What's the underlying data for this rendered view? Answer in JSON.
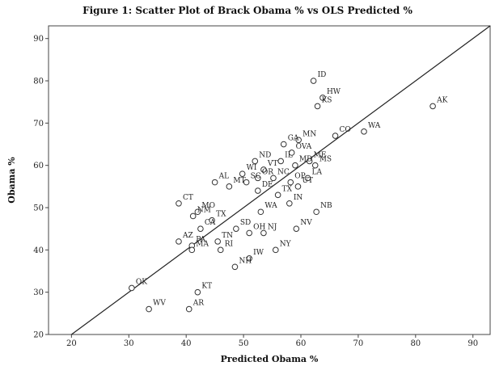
{
  "chart_data": {
    "type": "scatter",
    "title": "Figure 1: Scatter Plot of Brack Obama % vs OLS Predicted %",
    "xlabel": "Predicted Obama %",
    "ylabel": "Obama %",
    "xlim": [
      16,
      93
    ],
    "ylim": [
      20,
      93
    ],
    "xticks": [
      20,
      30,
      40,
      50,
      60,
      70,
      80,
      90
    ],
    "yticks": [
      20,
      30,
      40,
      50,
      60,
      70,
      80,
      90
    ],
    "fit_line": {
      "x": [
        20,
        93
      ],
      "y": [
        20,
        93
      ]
    },
    "points": [
      {
        "label": "ID",
        "x": 62.2,
        "y": 80
      },
      {
        "label": "HW",
        "x": 63.8,
        "y": 76
      },
      {
        "label": "KS",
        "x": 62.9,
        "y": 74
      },
      {
        "label": "AK",
        "x": 83,
        "y": 74
      },
      {
        "label": "WA",
        "x": 71,
        "y": 68
      },
      {
        "label": "CO",
        "x": 66,
        "y": 67
      },
      {
        "label": "MN",
        "x": 59.6,
        "y": 66
      },
      {
        "label": "GA",
        "x": 57,
        "y": 65
      },
      {
        "label": "OVA",
        "x": 58.4,
        "y": 63
      },
      {
        "label": "IL",
        "x": 56.5,
        "y": 61
      },
      {
        "label": "ND",
        "x": 52,
        "y": 61
      },
      {
        "label": "ME",
        "x": 61.5,
        "y": 61
      },
      {
        "label": "MD",
        "x": 59,
        "y": 60
      },
      {
        "label": "MS",
        "x": 62.5,
        "y": 60
      },
      {
        "label": "VT",
        "x": 53.5,
        "y": 59
      },
      {
        "label": "WI",
        "x": 49.8,
        "y": 58
      },
      {
        "label": "OR",
        "x": 52.5,
        "y": 57
      },
      {
        "label": "NC",
        "x": 55.2,
        "y": 57
      },
      {
        "label": "LA",
        "x": 61.2,
        "y": 57
      },
      {
        "label": "OP",
        "x": 58.2,
        "y": 56
      },
      {
        "label": "SC",
        "x": 50.5,
        "y": 56
      },
      {
        "label": "AL",
        "x": 45,
        "y": 56
      },
      {
        "label": "UT",
        "x": 59.5,
        "y": 55
      },
      {
        "label": "MT",
        "x": 47.5,
        "y": 55
      },
      {
        "label": "DE",
        "x": 52.5,
        "y": 54
      },
      {
        "label": "TX",
        "x": 56,
        "y": 53
      },
      {
        "label": "CT",
        "x": 38.7,
        "y": 51
      },
      {
        "label": "IN",
        "x": 58,
        "y": 51
      },
      {
        "label": "MO",
        "x": 42,
        "y": 49
      },
      {
        "label": "NB",
        "x": 62.7,
        "y": 49
      },
      {
        "label": "WA",
        "x": 53,
        "y": 49
      },
      {
        "label": "TX",
        "x": 44.5,
        "y": 47
      },
      {
        "label": "NM",
        "x": 41.2,
        "y": 48
      },
      {
        "label": "NV",
        "x": 59.2,
        "y": 45
      },
      {
        "label": "SD",
        "x": 48.7,
        "y": 45
      },
      {
        "label": "CA",
        "x": 42.5,
        "y": 45
      },
      {
        "label": "OH",
        "x": 51,
        "y": 44
      },
      {
        "label": "NJ",
        "x": 53.5,
        "y": 44
      },
      {
        "label": "AZ",
        "x": 38.7,
        "y": 42
      },
      {
        "label": "PA",
        "x": 41,
        "y": 41
      },
      {
        "label": "TN",
        "x": 45.5,
        "y": 42
      },
      {
        "label": "MA",
        "x": 41,
        "y": 40
      },
      {
        "label": "RI",
        "x": 46,
        "y": 40
      },
      {
        "label": "NY",
        "x": 55.6,
        "y": 40
      },
      {
        "label": "IW",
        "x": 51,
        "y": 38
      },
      {
        "label": "NH",
        "x": 48.5,
        "y": 36
      },
      {
        "label": "OK",
        "x": 30.5,
        "y": 31
      },
      {
        "label": "KT",
        "x": 42,
        "y": 30
      },
      {
        "label": "WV",
        "x": 33.5,
        "y": 26
      },
      {
        "label": "AR",
        "x": 40.5,
        "y": 26
      }
    ]
  }
}
